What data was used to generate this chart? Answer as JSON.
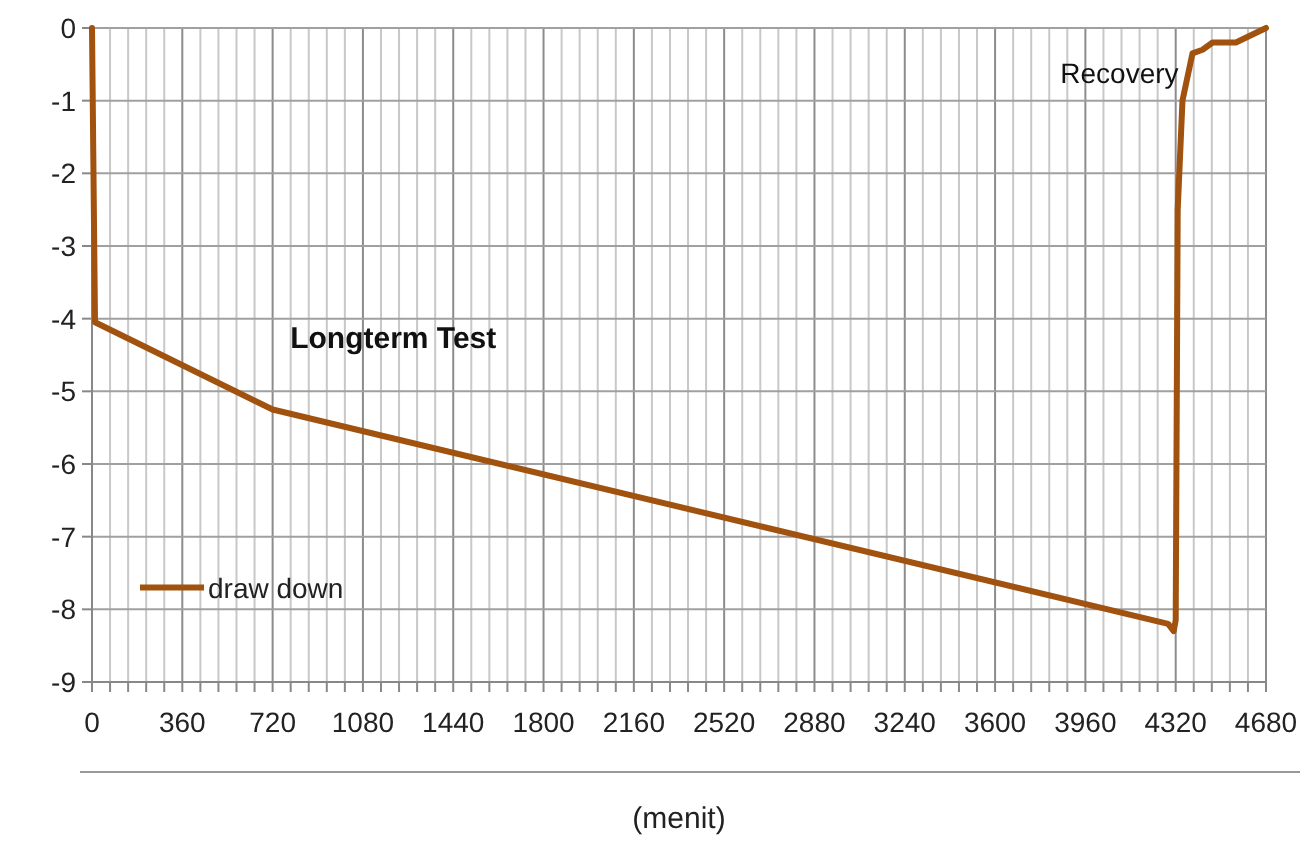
{
  "chart_data": {
    "type": "line",
    "xlabel": "(menit)",
    "annotations": [
      "Longterm Test",
      "Recovery"
    ],
    "xlim": [
      0,
      4680
    ],
    "xticks": [
      0,
      {
        "value": 72,
        "label": null
      },
      {
        "value": 144,
        "label": null
      },
      {
        "value": 216,
        "label": null
      },
      {
        "value": 288,
        "label": null
      },
      360,
      {
        "value": 432,
        "label": null
      },
      {
        "value": 504,
        "label": null
      },
      {
        "value": 576,
        "label": null
      },
      {
        "value": 648,
        "label": null
      },
      720,
      {
        "value": 792,
        "label": null
      },
      {
        "value": 864,
        "label": null
      },
      {
        "value": 936,
        "label": null
      },
      {
        "value": 1008,
        "label": null
      },
      1080,
      {
        "value": 1152,
        "label": null
      },
      {
        "value": 1224,
        "label": null
      },
      {
        "value": 1296,
        "label": null
      },
      {
        "value": 1368,
        "label": null
      },
      1440,
      {
        "value": 1512,
        "label": null
      },
      {
        "value": 1584,
        "label": null
      },
      {
        "value": 1656,
        "label": null
      },
      {
        "value": 1728,
        "label": null
      },
      1800,
      {
        "value": 1872,
        "label": null
      },
      {
        "value": 1944,
        "label": null
      },
      {
        "value": 2016,
        "label": null
      },
      {
        "value": 2088,
        "label": null
      },
      2160,
      {
        "value": 2232,
        "label": null
      },
      {
        "value": 2304,
        "label": null
      },
      {
        "value": 2376,
        "label": null
      },
      {
        "value": 2448,
        "label": null
      },
      2520,
      {
        "value": 2592,
        "label": null
      },
      {
        "value": 2664,
        "label": null
      },
      {
        "value": 2736,
        "label": null
      },
      {
        "value": 2808,
        "label": null
      },
      2880,
      {
        "value": 2952,
        "label": null
      },
      {
        "value": 3024,
        "label": null
      },
      {
        "value": 3096,
        "label": null
      },
      {
        "value": 3168,
        "label": null
      },
      3240,
      {
        "value": 3312,
        "label": null
      },
      {
        "value": 3384,
        "label": null
      },
      {
        "value": 3456,
        "label": null
      },
      {
        "value": 3528,
        "label": null
      },
      3600,
      {
        "value": 3672,
        "label": null
      },
      {
        "value": 3744,
        "label": null
      },
      {
        "value": 3816,
        "label": null
      },
      {
        "value": 3888,
        "label": null
      },
      3960,
      {
        "value": 4032,
        "label": null
      },
      {
        "value": 4104,
        "label": null
      },
      {
        "value": 4176,
        "label": null
      },
      {
        "value": 4248,
        "label": null
      },
      4320,
      {
        "value": 4392,
        "label": null
      },
      {
        "value": 4464,
        "label": null
      },
      {
        "value": 4536,
        "label": null
      },
      {
        "value": 4608,
        "label": null
      },
      4680
    ],
    "ylim": [
      -9,
      0
    ],
    "yticks": [
      -9,
      -8,
      -7,
      -6,
      -5,
      -4,
      -3,
      -2,
      -1,
      0
    ],
    "grid": true,
    "legend": "bottom left",
    "marker": "none",
    "line_style": "solid",
    "series": [
      {
        "name": "draw down",
        "color": "#a0520e",
        "x": [
          0,
          12,
          720,
          4290,
          4312,
          4320,
          4328,
          4347,
          4387,
          4427,
          4467,
          4560,
          4680
        ],
        "values": [
          0,
          -4.05,
          -5.25,
          -8.2,
          -8.3,
          -8.15,
          -2.5,
          -1.0,
          -0.35,
          -0.3,
          -0.2,
          -0.2,
          0
        ]
      }
    ]
  }
}
